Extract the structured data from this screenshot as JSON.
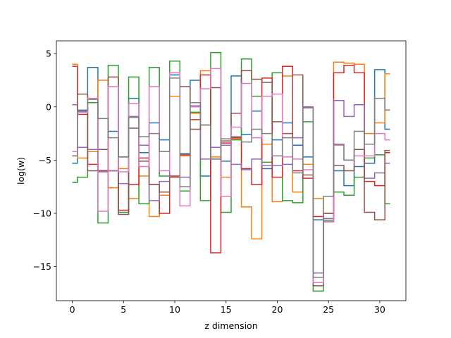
{
  "chart_data": {
    "type": "line",
    "drawstyle": "steps-mid",
    "xlabel": "z dimension",
    "ylabel": "log(w)",
    "xlim": [
      -1.55,
      32.55
    ],
    "ylim": [
      -18.2,
      6.2
    ],
    "xticks": [
      0,
      5,
      10,
      15,
      20,
      25,
      30
    ],
    "xtick_labels": [
      "0",
      "5",
      "10",
      "15",
      "20",
      "25",
      "30"
    ],
    "yticks": [
      5,
      0,
      -5,
      -10,
      -15
    ],
    "ytick_labels": [
      "5",
      "0",
      "−5",
      "−10",
      "−15"
    ],
    "grid": false,
    "legend": "none",
    "x": [
      0,
      1,
      2,
      3,
      4,
      5,
      6,
      7,
      8,
      9,
      10,
      11,
      12,
      13,
      14,
      15,
      16,
      17,
      18,
      19,
      20,
      21,
      22,
      23,
      24,
      25,
      26,
      27,
      28,
      29,
      30,
      31
    ],
    "series": [
      {
        "color": "#1f77b4",
        "values": [
          -5.3,
          -0.4,
          3.7,
          -6.0,
          -2.3,
          -4.7,
          0.8,
          -4.3,
          -1.5,
          -3.1,
          3.0,
          -4.4,
          2.5,
          -6.5,
          -4.9,
          -5.1,
          2.9,
          -2.6,
          -0.4,
          -5.8,
          -3.1,
          -1.5,
          -3.6,
          -4.7,
          -10.6,
          -10.5,
          -6.0,
          -7.4,
          -5.6,
          -5.3,
          3.5,
          -2.1
        ]
      },
      {
        "color": "#ff7f0e",
        "values": [
          4.0,
          -4.8,
          -4.2,
          2.5,
          -7.6,
          -5.8,
          -8.6,
          -6.5,
          -10.3,
          -8.3,
          1.0,
          -4.6,
          -0.6,
          3.4,
          -4.7,
          -6.6,
          -3.0,
          -9.4,
          -12.4,
          -3.5,
          -8.9,
          2.9,
          -8.0,
          -5.4,
          -8.6,
          -10.8,
          4.2,
          4.1,
          4.0,
          -2.5,
          -1.5,
          3.1
        ]
      },
      {
        "color": "#2ca02c",
        "values": [
          -7.1,
          -6.6,
          0.4,
          -10.9,
          3.9,
          -9.9,
          2.8,
          -9.1,
          3.7,
          -6.5,
          4.3,
          -7.9,
          -0.5,
          -8.8,
          5.1,
          -9.9,
          -3.1,
          4.5,
          1.0,
          -5.2,
          3.2,
          -8.8,
          -9.0,
          -1.4,
          -17.3,
          -10.7,
          -8.0,
          -8.3,
          -6.6,
          -4.8,
          -4.5,
          -9.1
        ]
      },
      {
        "color": "#d62728",
        "values": [
          3.8,
          -0.7,
          -5.4,
          -6.0,
          -6.0,
          -9.7,
          -7.3,
          -4.8,
          -7.3,
          -10.0,
          -6.5,
          -4.5,
          -1.2,
          3.0,
          -13.7,
          -3.4,
          -2.9,
          -5.8,
          -7.3,
          2.7,
          -6.6,
          3.8,
          -6.0,
          -6.7,
          -10.3,
          -10.0,
          3.2,
          3.9,
          3.2,
          -7.0,
          -7.4,
          -4.3
        ]
      },
      {
        "color": "#9467bd",
        "values": [
          0.2,
          -3.8,
          -4.0,
          -6.1,
          -6.0,
          -7.2,
          -0.9,
          -3.6,
          -8.8,
          -7.0,
          3.2,
          -6.6,
          0.1,
          -4.9,
          -3.8,
          -3.6,
          -5.4,
          -5.9,
          -4.9,
          -5.5,
          -5.5,
          -5.4,
          -2.9,
          -0.1,
          -15.6,
          -10.5,
          0.6,
          -0.9,
          0.2,
          -6.7,
          -6.2,
          -5.3
        ]
      },
      {
        "color": "#8c564b",
        "values": [
          -4.6,
          1.2,
          -6.0,
          -4.0,
          2.8,
          -10.1,
          -2.0,
          -5.1,
          -7.3,
          -8.0,
          -6.6,
          1.9,
          -2.1,
          -1.7,
          1.8,
          -3.2,
          -0.6,
          3.4,
          2.6,
          2.3,
          -1.4,
          -2.5,
          3.0,
          -6.4,
          -16.8,
          -10.0,
          -5.5,
          -6.0,
          -4.0,
          -9.9,
          -10.6,
          -4.1
        ]
      },
      {
        "color": "#e377c2",
        "values": [
          -4.2,
          -0.5,
          0.8,
          -9.8,
          1.9,
          -6.1,
          0.3,
          -5.6,
          1.9,
          -6.0,
          3.2,
          -9.3,
          0.0,
          1.7,
          3.6,
          -8.4,
          -1.9,
          2.2,
          -2.9,
          1.0,
          1.2,
          -4.7,
          -4.9,
          -5.9,
          -16.5,
          -10.8,
          -3.6,
          -5.0,
          -4.6,
          -4.6,
          -2.5,
          -3.1
        ]
      },
      {
        "color": "#7f7f7f",
        "values": [
          -4.6,
          -0.3,
          0.7,
          -1.1,
          -2.9,
          -4.7,
          -1.0,
          -2.8,
          -2.5,
          -4.2,
          2.7,
          -7.5,
          0.4,
          -1.7,
          -4.9,
          -3.0,
          -2.8,
          -3.3,
          -2.1,
          -2.5,
          -4.6,
          -2.9,
          -6.2,
          0.0,
          -16.0,
          -8.4,
          -3.5,
          -5.0,
          -2.3,
          -3.5,
          0.8,
          -0.3
        ]
      }
    ]
  }
}
